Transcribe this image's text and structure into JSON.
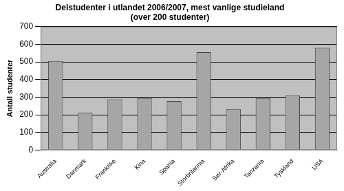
{
  "chart_data": {
    "type": "bar",
    "title": "Delstudenter i utlandet 2006/2007, mest vanlige studieland\n(over 200 studenter)",
    "y_label": "Antall studenter",
    "categories": [
      "Australia",
      "Danmark",
      "Frankrike",
      "Kina",
      "Spania",
      "Storbritannia",
      "Sør-Afrika",
      "Tanzania",
      "Tyskland",
      "USA"
    ],
    "values": [
      505,
      213,
      288,
      295,
      278,
      555,
      232,
      295,
      310,
      580
    ],
    "color": "#a6a6a6",
    "ylim": [
      0,
      700
    ],
    "yticks": [
      0,
      100,
      200,
      300,
      400,
      500,
      600,
      700
    ],
    "grid": true
  }
}
